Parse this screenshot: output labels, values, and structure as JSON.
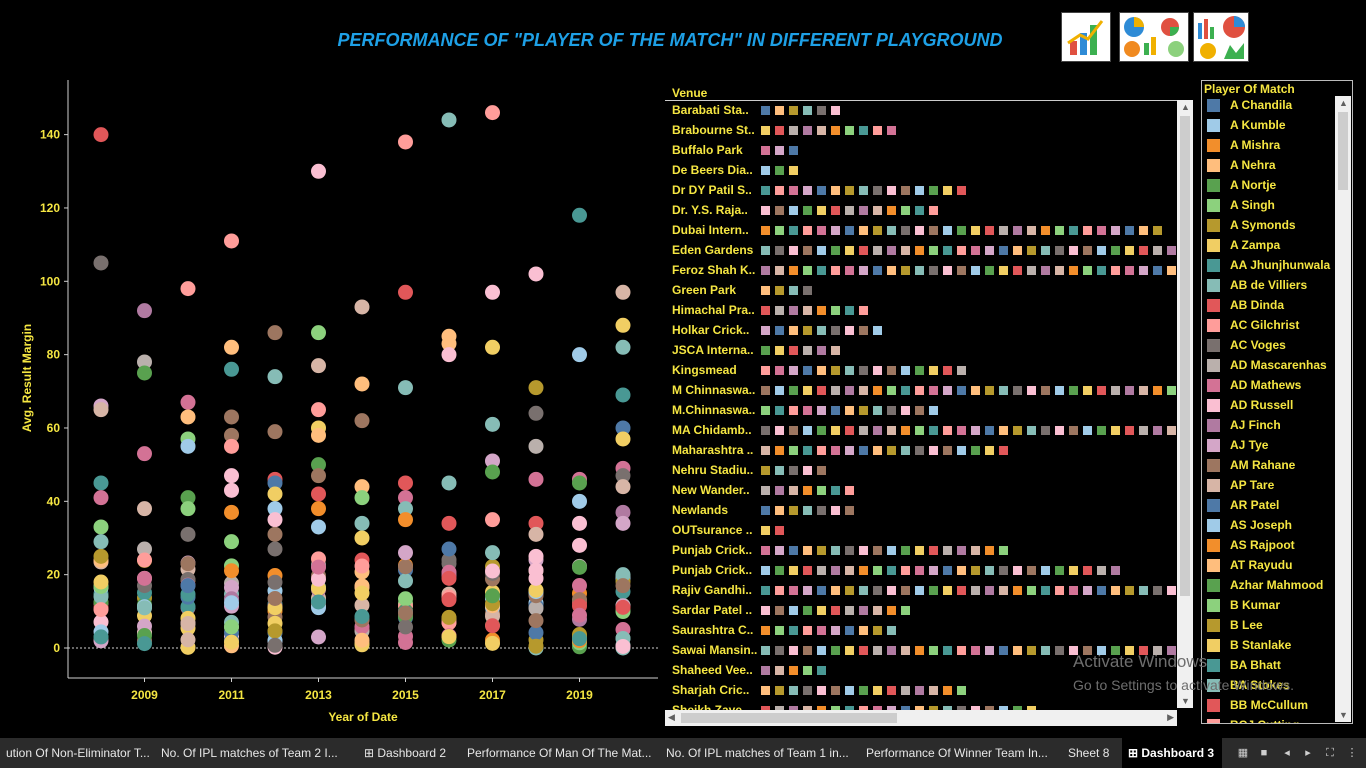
{
  "title": "PERFORMANCE OF  \"PLAYER OF THE MATCH\" IN DIFFERENT PLAYGROUND",
  "thumbnails": [
    "bar-chart-thumbnail",
    "pie-charts-thumbnail",
    "mixed-charts-thumbnail"
  ],
  "chart_data": {
    "type": "scatter",
    "xlabel": "Year of Date",
    "ylabel": "Avg. Result Margin",
    "x_ticks": [
      "2009",
      "2011",
      "2013",
      "2015",
      "2017",
      "2019"
    ],
    "y_ticks": [
      "0",
      "20",
      "40",
      "60",
      "80",
      "100",
      "120",
      "140"
    ],
    "xlim": [
      2007.5,
      2020.8
    ],
    "ylim": [
      -8,
      155
    ],
    "zero_line": true,
    "notable_points": [
      {
        "x": 2008,
        "y": 140,
        "color": "#e15759"
      },
      {
        "x": 2008,
        "y": 105,
        "color": "#79706e"
      },
      {
        "x": 2008,
        "y": 66,
        "color": "#d4a6c8"
      },
      {
        "x": 2008,
        "y": 65,
        "color": "#d7b5a6"
      },
      {
        "x": 2008,
        "y": 45,
        "color": "#499894"
      },
      {
        "x": 2008,
        "y": 41,
        "color": "#d37295"
      },
      {
        "x": 2008,
        "y": 33,
        "color": "#8cd17d"
      },
      {
        "x": 2008,
        "y": 29,
        "color": "#86bcb6"
      },
      {
        "x": 2008,
        "y": 25,
        "color": "#b6992d"
      },
      {
        "x": 2008,
        "y": 18,
        "color": "#f1ce63"
      },
      {
        "x": 2009,
        "y": 92,
        "color": "#b07aa1"
      },
      {
        "x": 2009,
        "y": 78,
        "color": "#bab0ac"
      },
      {
        "x": 2009,
        "y": 75,
        "color": "#59a14f"
      },
      {
        "x": 2009,
        "y": 53,
        "color": "#d37295"
      },
      {
        "x": 2009,
        "y": 38,
        "color": "#d7b5a6"
      },
      {
        "x": 2009,
        "y": 27,
        "color": "#bab0ac"
      },
      {
        "x": 2009,
        "y": 24,
        "color": "#ff9d9a"
      },
      {
        "x": 2009,
        "y": 19,
        "color": "#d37295"
      },
      {
        "x": 2010,
        "y": 98,
        "color": "#ff9d9a"
      },
      {
        "x": 2010,
        "y": 67,
        "color": "#d37295"
      },
      {
        "x": 2010,
        "y": 63,
        "color": "#ffbe7d"
      },
      {
        "x": 2010,
        "y": 57,
        "color": "#8cd17d"
      },
      {
        "x": 2010,
        "y": 55,
        "color": "#a0cbe8"
      },
      {
        "x": 2010,
        "y": 41,
        "color": "#59a14f"
      },
      {
        "x": 2010,
        "y": 38,
        "color": "#8cd17d"
      },
      {
        "x": 2010,
        "y": 31,
        "color": "#79706e"
      },
      {
        "x": 2010,
        "y": 23,
        "color": "#9d7660"
      },
      {
        "x": 2010,
        "y": 17,
        "color": "#4e79a7"
      },
      {
        "x": 2011,
        "y": 111,
        "color": "#ff9d9a"
      },
      {
        "x": 2011,
        "y": 82,
        "color": "#ffbe7d"
      },
      {
        "x": 2011,
        "y": 76,
        "color": "#499894"
      },
      {
        "x": 2011,
        "y": 63,
        "color": "#9d7660"
      },
      {
        "x": 2011,
        "y": 58,
        "color": "#9d7660"
      },
      {
        "x": 2011,
        "y": 55,
        "color": "#ff9d9a"
      },
      {
        "x": 2011,
        "y": 47,
        "color": "#fabfd2"
      },
      {
        "x": 2011,
        "y": 43,
        "color": "#fabfd2"
      },
      {
        "x": 2011,
        "y": 37,
        "color": "#f28e2b"
      },
      {
        "x": 2011,
        "y": 29,
        "color": "#8cd17d"
      },
      {
        "x": 2012,
        "y": 86,
        "color": "#9d7660"
      },
      {
        "x": 2012,
        "y": 74,
        "color": "#86bcb6"
      },
      {
        "x": 2012,
        "y": 59,
        "color": "#9d7660"
      },
      {
        "x": 2012,
        "y": 46,
        "color": "#e15759"
      },
      {
        "x": 2012,
        "y": 45,
        "color": "#4e79a7"
      },
      {
        "x": 2012,
        "y": 42,
        "color": "#f1ce63"
      },
      {
        "x": 2012,
        "y": 38,
        "color": "#a0cbe8"
      },
      {
        "x": 2012,
        "y": 35,
        "color": "#fabfd2"
      },
      {
        "x": 2012,
        "y": 31,
        "color": "#9d7660"
      },
      {
        "x": 2012,
        "y": 27,
        "color": "#79706e"
      },
      {
        "x": 2013,
        "y": 130,
        "color": "#fabfd2"
      },
      {
        "x": 2013,
        "y": 86,
        "color": "#8cd17d"
      },
      {
        "x": 2013,
        "y": 77,
        "color": "#d7b5a6"
      },
      {
        "x": 2013,
        "y": 65,
        "color": "#ff9d9a"
      },
      {
        "x": 2013,
        "y": 60,
        "color": "#f1ce63"
      },
      {
        "x": 2013,
        "y": 58,
        "color": "#ffbe7d"
      },
      {
        "x": 2013,
        "y": 50,
        "color": "#59a14f"
      },
      {
        "x": 2013,
        "y": 47,
        "color": "#9d7660"
      },
      {
        "x": 2013,
        "y": 42,
        "color": "#e15759"
      },
      {
        "x": 2013,
        "y": 38,
        "color": "#f28e2b"
      },
      {
        "x": 2013,
        "y": 33,
        "color": "#a0cbe8"
      },
      {
        "x": 2014,
        "y": 93,
        "color": "#d7b5a6"
      },
      {
        "x": 2014,
        "y": 72,
        "color": "#ffbe7d"
      },
      {
        "x": 2014,
        "y": 62,
        "color": "#9d7660"
      },
      {
        "x": 2014,
        "y": 44,
        "color": "#ffbe7d"
      },
      {
        "x": 2014,
        "y": 41,
        "color": "#8cd17d"
      },
      {
        "x": 2014,
        "y": 34,
        "color": "#86bcb6"
      },
      {
        "x": 2014,
        "y": 30,
        "color": "#f1ce63"
      },
      {
        "x": 2015,
        "y": 138,
        "color": "#ff9d9a"
      },
      {
        "x": 2015,
        "y": 97,
        "color": "#e15759"
      },
      {
        "x": 2015,
        "y": 71,
        "color": "#86bcb6"
      },
      {
        "x": 2015,
        "y": 45,
        "color": "#e15759"
      },
      {
        "x": 2015,
        "y": 41,
        "color": "#d37295"
      },
      {
        "x": 2015,
        "y": 38,
        "color": "#86bcb6"
      },
      {
        "x": 2015,
        "y": 35,
        "color": "#f28e2b"
      },
      {
        "x": 2015,
        "y": 26,
        "color": "#d4a6c8"
      },
      {
        "x": 2016,
        "y": 144,
        "color": "#86bcb6"
      },
      {
        "x": 2016,
        "y": 85,
        "color": "#ffbe7d"
      },
      {
        "x": 2016,
        "y": 83,
        "color": "#ffbe7d"
      },
      {
        "x": 2016,
        "y": 80,
        "color": "#fabfd2"
      },
      {
        "x": 2016,
        "y": 45,
        "color": "#86bcb6"
      },
      {
        "x": 2016,
        "y": 34,
        "color": "#e15759"
      },
      {
        "x": 2016,
        "y": 27,
        "color": "#4e79a7"
      },
      {
        "x": 2016,
        "y": 19,
        "color": "#e15759"
      },
      {
        "x": 2017,
        "y": 146,
        "color": "#ff9d9a"
      },
      {
        "x": 2017,
        "y": 97,
        "color": "#fabfd2"
      },
      {
        "x": 2017,
        "y": 82,
        "color": "#f1ce63"
      },
      {
        "x": 2017,
        "y": 61,
        "color": "#86bcb6"
      },
      {
        "x": 2017,
        "y": 51,
        "color": "#d4a6c8"
      },
      {
        "x": 2017,
        "y": 48,
        "color": "#59a14f"
      },
      {
        "x": 2017,
        "y": 35,
        "color": "#ff9d9a"
      },
      {
        "x": 2017,
        "y": 26,
        "color": "#86bcb6"
      },
      {
        "x": 2017,
        "y": 21,
        "color": "#fabfd2"
      },
      {
        "x": 2018,
        "y": 102,
        "color": "#fabfd2"
      },
      {
        "x": 2018,
        "y": 71,
        "color": "#b6992d"
      },
      {
        "x": 2018,
        "y": 64,
        "color": "#79706e"
      },
      {
        "x": 2018,
        "y": 55,
        "color": "#bab0ac"
      },
      {
        "x": 2018,
        "y": 46,
        "color": "#d37295"
      },
      {
        "x": 2018,
        "y": 34,
        "color": "#e15759"
      },
      {
        "x": 2018,
        "y": 31,
        "color": "#d7b5a6"
      },
      {
        "x": 2018,
        "y": 25,
        "color": "#fabfd2"
      },
      {
        "x": 2018,
        "y": 19,
        "color": "#fabfd2"
      },
      {
        "x": 2019,
        "y": 118,
        "color": "#499894"
      },
      {
        "x": 2019,
        "y": 80,
        "color": "#a0cbe8"
      },
      {
        "x": 2019,
        "y": 46,
        "color": "#d37295"
      },
      {
        "x": 2019,
        "y": 45,
        "color": "#59a14f"
      },
      {
        "x": 2019,
        "y": 40,
        "color": "#a0cbe8"
      },
      {
        "x": 2019,
        "y": 34,
        "color": "#fabfd2"
      },
      {
        "x": 2019,
        "y": 28,
        "color": "#fabfd2"
      },
      {
        "x": 2019,
        "y": 22,
        "color": "#59a14f"
      },
      {
        "x": 2020,
        "y": 97,
        "color": "#d7b5a6"
      },
      {
        "x": 2020,
        "y": 88,
        "color": "#f1ce63"
      },
      {
        "x": 2020,
        "y": 82,
        "color": "#86bcb6"
      },
      {
        "x": 2020,
        "y": 69,
        "color": "#499894"
      },
      {
        "x": 2020,
        "y": 60,
        "color": "#4e79a7"
      },
      {
        "x": 2020,
        "y": 57,
        "color": "#f1ce63"
      },
      {
        "x": 2020,
        "y": 49,
        "color": "#d37295"
      },
      {
        "x": 2020,
        "y": 47,
        "color": "#79706e"
      },
      {
        "x": 2020,
        "y": 44,
        "color": "#d7b5a6"
      },
      {
        "x": 2020,
        "y": 37,
        "color": "#b07aa1"
      },
      {
        "x": 2020,
        "y": 34,
        "color": "#d4a6c8"
      },
      {
        "x": 2020,
        "y": 20,
        "color": "#86bcb6"
      },
      {
        "x": 2020,
        "y": 17,
        "color": "#9d7660"
      }
    ],
    "dense_cluster_range": [
      0,
      25
    ]
  },
  "venues": {
    "header": "Venue",
    "rows": [
      {
        "name": "Barabati Sta..",
        "n": 6
      },
      {
        "name": "Brabourne St..",
        "n": 10
      },
      {
        "name": "Buffalo Park",
        "n": 3
      },
      {
        "name": "De Beers Dia..",
        "n": 3
      },
      {
        "name": "Dr DY Patil S..",
        "n": 15
      },
      {
        "name": "Dr. Y.S. Raja..",
        "n": 13
      },
      {
        "name": "Dubai Intern..",
        "n": 29
      },
      {
        "name": "Eden Gardens",
        "n": 30
      },
      {
        "name": "Feroz Shah K..",
        "n": 30
      },
      {
        "name": "Green Park",
        "n": 4
      },
      {
        "name": "Himachal Pra..",
        "n": 8
      },
      {
        "name": "Holkar Crick..",
        "n": 9
      },
      {
        "name": "JSCA Interna..",
        "n": 6
      },
      {
        "name": "Kingsmead",
        "n": 15
      },
      {
        "name": "M Chinnaswa..",
        "n": 30
      },
      {
        "name": "M.Chinnaswa..",
        "n": 13
      },
      {
        "name": "MA Chidamb..",
        "n": 30
      },
      {
        "name": "Maharashtra ..",
        "n": 18
      },
      {
        "name": "Nehru Stadiu..",
        "n": 5
      },
      {
        "name": "New Wander..",
        "n": 7
      },
      {
        "name": "Newlands",
        "n": 7
      },
      {
        "name": "OUTsurance ..",
        "n": 2
      },
      {
        "name": "Punjab Crick..",
        "n": 18
      },
      {
        "name": "Punjab Crick..",
        "n": 26
      },
      {
        "name": "Rajiv Gandhi..",
        "n": 30
      },
      {
        "name": "Sardar Patel ..",
        "n": 11
      },
      {
        "name": "Saurashtra C..",
        "n": 10
      },
      {
        "name": "Sawai Mansin..",
        "n": 30
      },
      {
        "name": "Shaheed Vee..",
        "n": 5
      },
      {
        "name": "Sharjah Cric..",
        "n": 15
      },
      {
        "name": "Sheikh Zaye..",
        "n": 20
      }
    ]
  },
  "legend": {
    "title": "Player Of Match",
    "items": [
      {
        "label": "A Chandila",
        "color": "#4e79a7"
      },
      {
        "label": "A Kumble",
        "color": "#a0cbe8"
      },
      {
        "label": "A Mishra",
        "color": "#f28e2b"
      },
      {
        "label": "A Nehra",
        "color": "#ffbe7d"
      },
      {
        "label": "A Nortje",
        "color": "#59a14f"
      },
      {
        "label": "A Singh",
        "color": "#8cd17d"
      },
      {
        "label": "A Symonds",
        "color": "#b6992d"
      },
      {
        "label": "A Zampa",
        "color": "#f1ce63"
      },
      {
        "label": "AA Jhunjhunwala",
        "color": "#499894"
      },
      {
        "label": "AB de Villiers",
        "color": "#86bcb6"
      },
      {
        "label": "AB Dinda",
        "color": "#e15759"
      },
      {
        "label": "AC Gilchrist",
        "color": "#ff9d9a"
      },
      {
        "label": "AC Voges",
        "color": "#79706e"
      },
      {
        "label": "AD Mascarenhas",
        "color": "#bab0ac"
      },
      {
        "label": "AD Mathews",
        "color": "#d37295"
      },
      {
        "label": "AD Russell",
        "color": "#fabfd2"
      },
      {
        "label": "AJ Finch",
        "color": "#b07aa1"
      },
      {
        "label": "AJ Tye",
        "color": "#d4a6c8"
      },
      {
        "label": "AM Rahane",
        "color": "#9d7660"
      },
      {
        "label": "AP Tare",
        "color": "#d7b5a6"
      },
      {
        "label": "AR Patel",
        "color": "#4e79a7"
      },
      {
        "label": "AS Joseph",
        "color": "#a0cbe8"
      },
      {
        "label": "AS Rajpoot",
        "color": "#f28e2b"
      },
      {
        "label": "AT Rayudu",
        "color": "#ffbe7d"
      },
      {
        "label": "Azhar Mahmood",
        "color": "#59a14f"
      },
      {
        "label": "B Kumar",
        "color": "#8cd17d"
      },
      {
        "label": "B Lee",
        "color": "#b6992d"
      },
      {
        "label": "B Stanlake",
        "color": "#f1ce63"
      },
      {
        "label": "BA Bhatt",
        "color": "#499894"
      },
      {
        "label": "BA Stokes",
        "color": "#86bcb6"
      },
      {
        "label": "BB McCullum",
        "color": "#e15759"
      },
      {
        "label": "BCJ Cutting",
        "color": "#ff9d9a"
      }
    ]
  },
  "palette": [
    "#4e79a7",
    "#a0cbe8",
    "#f28e2b",
    "#ffbe7d",
    "#59a14f",
    "#8cd17d",
    "#b6992d",
    "#f1ce63",
    "#499894",
    "#86bcb6",
    "#e15759",
    "#ff9d9a",
    "#79706e",
    "#bab0ac",
    "#d37295",
    "#fabfd2",
    "#b07aa1",
    "#d4a6c8",
    "#9d7660",
    "#d7b5a6"
  ],
  "watermark": {
    "line1": "Activate Windows",
    "line2": "Go to Settings to activate Windows."
  },
  "tabs": [
    {
      "label": "ution Of Non-Eliminator T...",
      "icon": false
    },
    {
      "label": "No. Of IPL matches of  Team 2 I...",
      "icon": false
    },
    {
      "label": "Dashboard 2",
      "icon": true
    },
    {
      "label": "Performance Of Man Of The Mat...",
      "icon": false
    },
    {
      "label": "No. Of IPL matches of  Team 1 in...",
      "icon": false
    },
    {
      "label": "Performance Of Winner Team In...",
      "icon": false
    },
    {
      "label": "Sheet 8",
      "icon": false
    },
    {
      "label": "Dashboard 3",
      "icon": true,
      "active": true
    }
  ],
  "nav_icons": [
    "grid-view-icon",
    "single-view-icon",
    "prev-icon",
    "next-icon",
    "fullscreen-icon",
    "more-icon"
  ]
}
